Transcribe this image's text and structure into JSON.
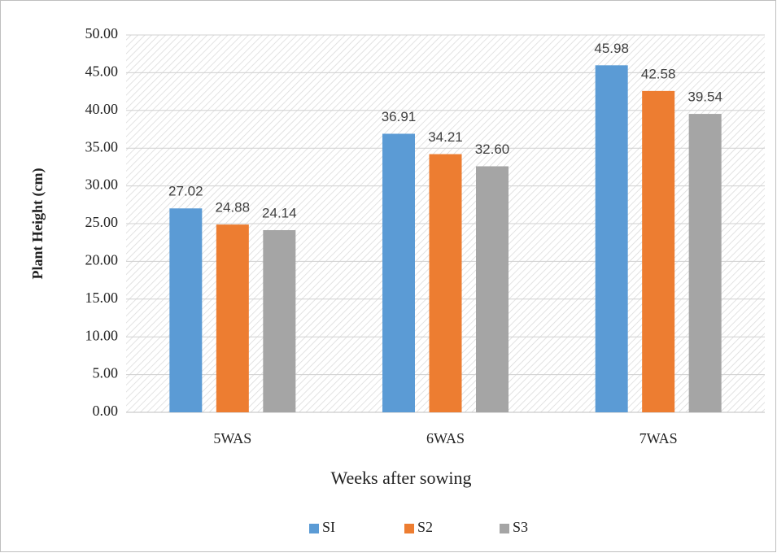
{
  "chart_data": {
    "type": "bar",
    "categories": [
      "5WAS",
      "6WAS",
      "7WAS"
    ],
    "series": [
      {
        "name": "SI",
        "color": "#5b9bd5",
        "values": [
          27.02,
          36.91,
          45.98
        ],
        "value_labels": [
          "27.02",
          "36.91",
          "45.98"
        ]
      },
      {
        "name": "S2",
        "color": "#ed7d31",
        "values": [
          24.88,
          34.21,
          42.58
        ],
        "value_labels": [
          "24.88",
          "34.21",
          "42.58"
        ]
      },
      {
        "name": "S3",
        "color": "#a5a5a5",
        "values": [
          24.14,
          32.6,
          39.54
        ],
        "value_labels": [
          "24.14",
          "32.60",
          "39.54"
        ]
      }
    ],
    "xlabel": "Weeks after sowing",
    "ylabel": "Plant Height (cm)",
    "ylim": [
      0,
      50
    ],
    "yticks": [
      {
        "value": 0,
        "label": "0.00"
      },
      {
        "value": 5,
        "label": "5.00"
      },
      {
        "value": 10,
        "label": "10.00"
      },
      {
        "value": 15,
        "label": "15.00"
      },
      {
        "value": 20,
        "label": "20.00"
      },
      {
        "value": 25,
        "label": "25.00"
      },
      {
        "value": 30,
        "label": "30.00"
      },
      {
        "value": 35,
        "label": "35.00"
      },
      {
        "value": 40,
        "label": "40.00"
      },
      {
        "value": 45,
        "label": "45.00"
      },
      {
        "value": 50,
        "label": "50.00"
      }
    ],
    "grid": true,
    "legend": "bottom"
  }
}
